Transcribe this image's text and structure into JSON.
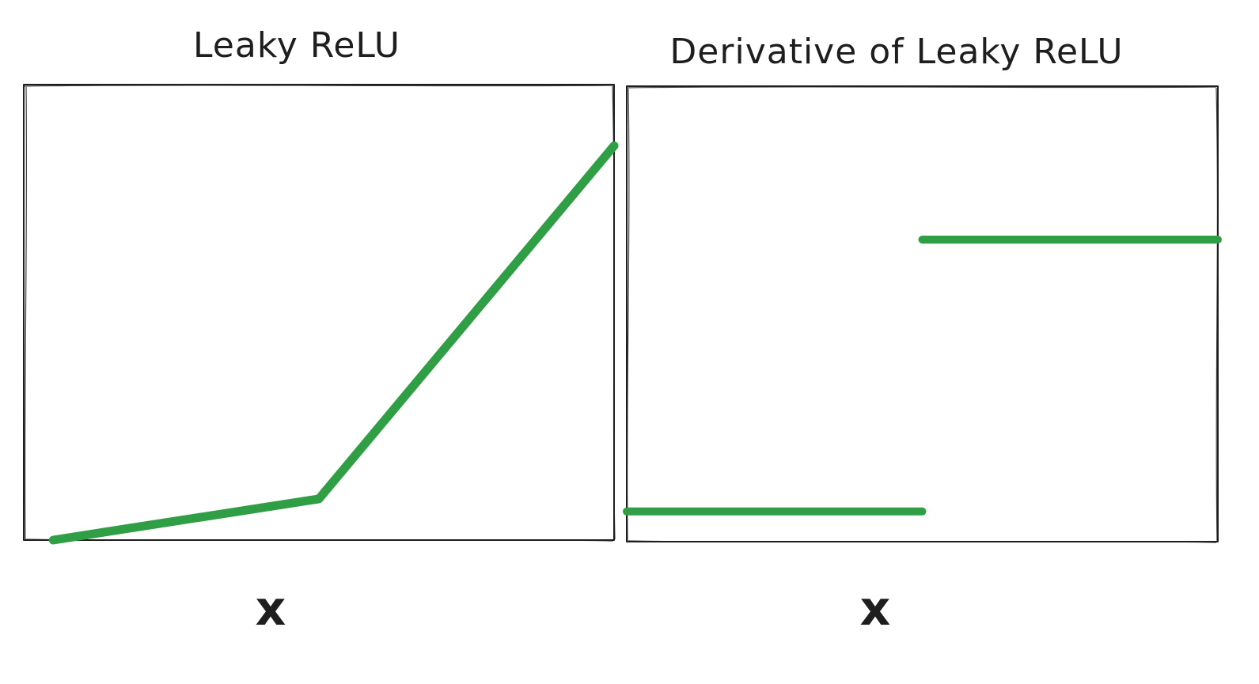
{
  "chart_data": [
    {
      "type": "line",
      "title": "Leaky ReLU",
      "xlabel": "x",
      "ylabel": "",
      "xlim": [
        -5,
        5
      ],
      "ylim": [
        -0.7,
        7
      ],
      "grid": false,
      "series": [
        {
          "x": [
            -4.5,
            0,
            5
          ],
          "y": [
            -0.7,
            0,
            6
          ]
        }
      ]
    },
    {
      "type": "line",
      "title": "Derivative of Leaky ReLU",
      "xlabel": "x",
      "ylabel": "",
      "xlim": [
        -5,
        5
      ],
      "ylim": [
        0,
        1.5
      ],
      "grid": false,
      "series": [
        {
          "x": [
            -5,
            0
          ],
          "y": [
            0.1,
            0.1
          ]
        },
        {
          "x": [
            0,
            5
          ],
          "y": [
            1,
            1
          ]
        }
      ]
    }
  ],
  "colors": {
    "line": "#2f9e44",
    "ink": "#1e1e1e",
    "background": "#ffffff"
  }
}
